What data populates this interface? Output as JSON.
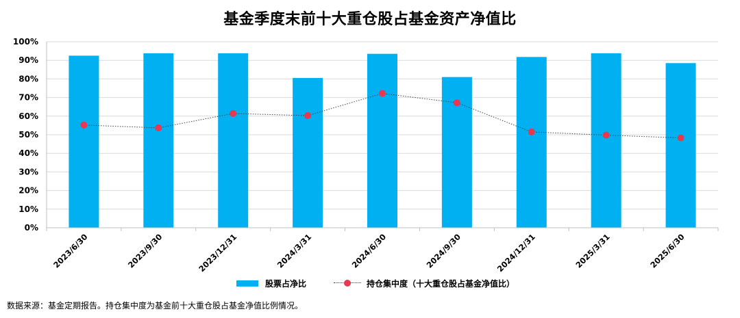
{
  "chart_data": {
    "type": "bar",
    "title": "基金季度末前十大重仓股占基金资产净值比",
    "categories": [
      "2023/6/30",
      "2023/9/30",
      "2023/12/31",
      "2024/3/31",
      "2024/6/30",
      "2024/9/30",
      "2024/12/31",
      "2025/3/31",
      "2025/6/30"
    ],
    "series": [
      {
        "name": "股票占净比",
        "kind": "bar",
        "color": "#00b0f0",
        "values": [
          92.5,
          93.8,
          93.8,
          80.5,
          93.5,
          81.0,
          91.8,
          93.8,
          88.5
        ]
      },
      {
        "name": "持仓集中度（十大重仓股占基金净值比）",
        "kind": "line",
        "color": "#e8384f",
        "values": [
          55.2,
          53.7,
          61.4,
          60.3,
          72.2,
          67.2,
          51.5,
          49.8,
          48.3
        ]
      }
    ],
    "ylim": [
      0,
      100
    ],
    "yticks": [
      0,
      10,
      20,
      30,
      40,
      50,
      60,
      70,
      80,
      90,
      100
    ],
    "ytick_labels": [
      "0%",
      "10%",
      "20%",
      "30%",
      "40%",
      "50%",
      "60%",
      "70%",
      "80%",
      "90%",
      "100%"
    ],
    "xlabel": "",
    "ylabel": "",
    "grid": true,
    "legend_position": "bottom"
  },
  "source_note": "数据来源：基金定期报告。持仓集中度为基金前十大重仓股占基金净值比例情况。"
}
